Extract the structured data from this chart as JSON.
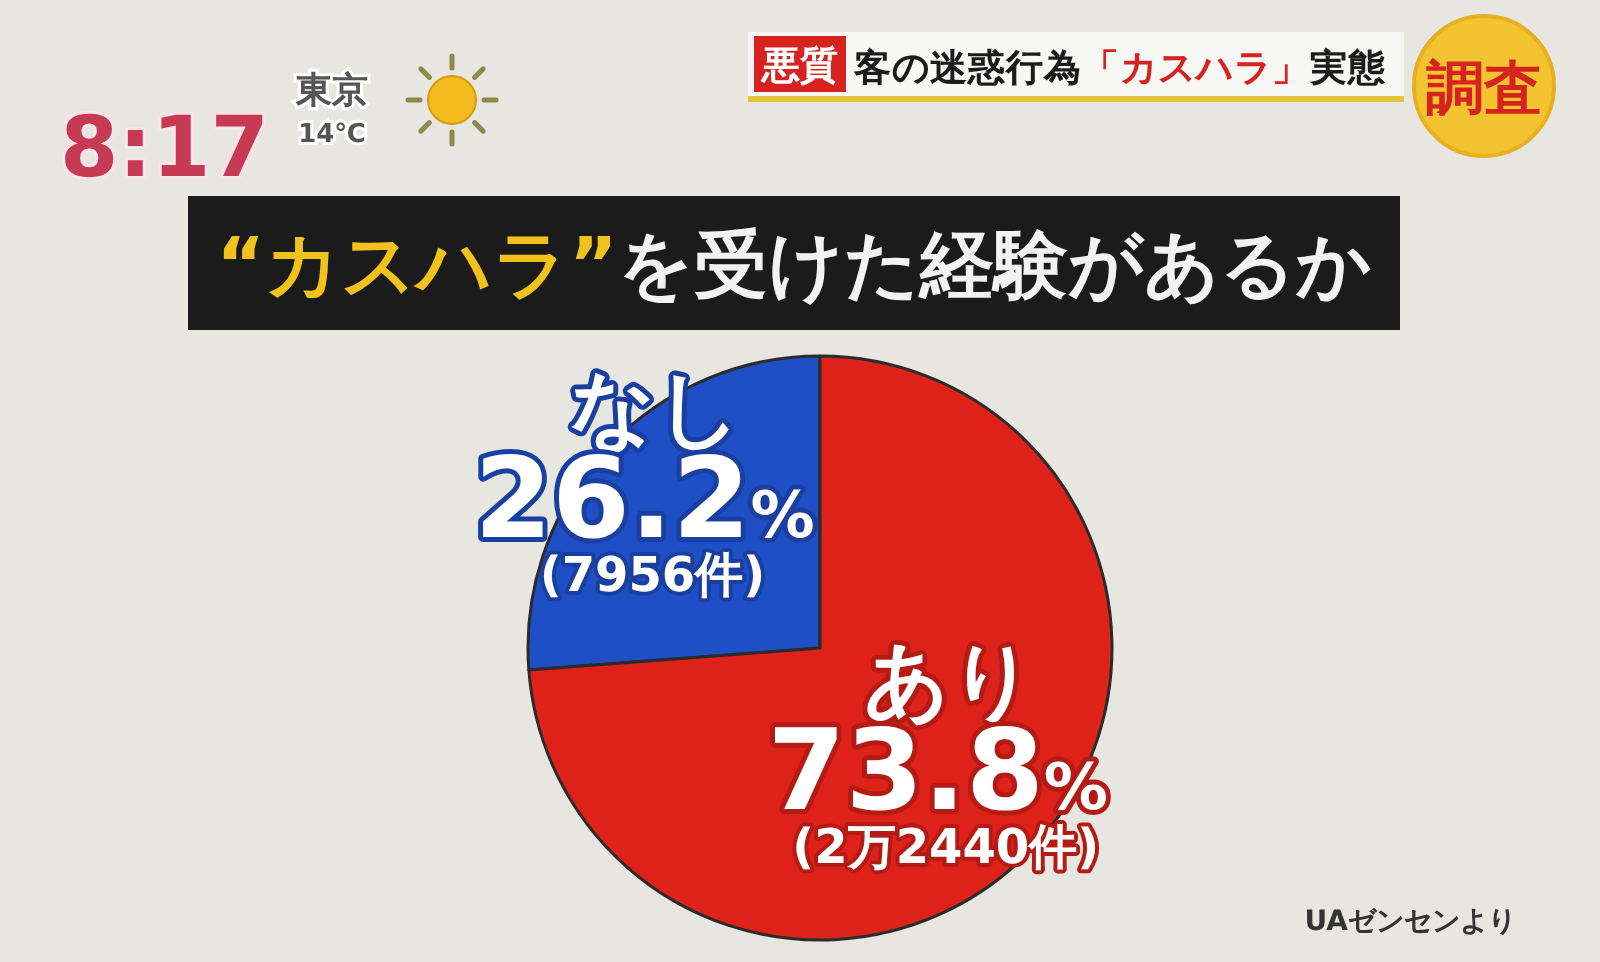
{
  "chart_data": {
    "type": "pie",
    "title": "“カスハラ”を受けた経験があるか",
    "subtitle": "客の迷惑行為「カスハラ」実態",
    "categories": [
      "なし",
      "あり"
    ],
    "values": [
      26.2,
      73.8
    ],
    "colors": [
      "#1f4fc6",
      "#de2219"
    ],
    "value_labels": [
      "26.2%\n(7956件)",
      "73.8%\n(2万2440件)"
    ],
    "annotations": [
      "悪質",
      "調査",
      "8:17",
      "東京",
      "14℃",
      "UAゼンセンより"
    ]
  }
}
